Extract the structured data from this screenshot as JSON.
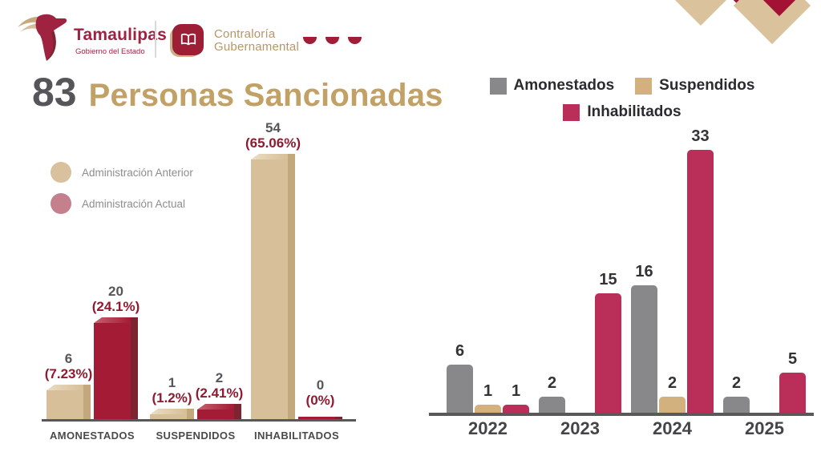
{
  "header": {
    "brand": {
      "name": "Tamaulipas",
      "subtitle": "Gobierno del Estado"
    },
    "org": {
      "line1": "Contraloría",
      "line2": "Gubernamental"
    }
  },
  "title": {
    "number": "83",
    "text": "Personas Sancionadas"
  },
  "colors": {
    "crimson": "#9F2241",
    "tan": "#D9C29C",
    "dark_gray": "#56565A",
    "axis": "#58585A"
  },
  "chart_data": [
    {
      "type": "bar",
      "title": "",
      "categories": [
        "AMONESTADOS",
        "SUSPENDIDOS",
        "INHABILITADOS"
      ],
      "series": [
        {
          "name": "Administración Anterior",
          "values": [
            6,
            1,
            54
          ],
          "percent_labels": [
            "(7.23%)",
            "(1.2%)",
            "(65.06%)"
          ],
          "color": "#D6BF99",
          "color_dark": "#C2A87C",
          "color_light": "#EADDC2",
          "legend_color": "#D8C19C"
        },
        {
          "name": "Administración Actual",
          "values": [
            20,
            2,
            0
          ],
          "percent_labels": [
            "(24.1%)",
            "(2.41%)",
            "(0%)"
          ],
          "color": "#A31B35",
          "color_dark": "#7D2431",
          "color_light": "#C5616F",
          "legend_color": "#C5808D"
        }
      ],
      "legend_position": "left",
      "grid": false,
      "ylim": [
        0,
        54
      ]
    },
    {
      "type": "bar",
      "title": "",
      "categories": [
        "2022",
        "2023",
        "2024",
        "2025"
      ],
      "series": [
        {
          "name": "Amonestados",
          "values": [
            6,
            2,
            16,
            2
          ],
          "color": "#88888A"
        },
        {
          "name": "Suspendidos",
          "values": [
            1,
            0,
            2,
            0
          ],
          "color": "#D2B17E"
        },
        {
          "name": "Inhabilitados",
          "values": [
            1,
            15,
            33,
            5
          ],
          "color": "#BA2F59"
        }
      ],
      "legend_position": "top",
      "grid": false,
      "ylim": [
        0,
        33
      ]
    }
  ]
}
